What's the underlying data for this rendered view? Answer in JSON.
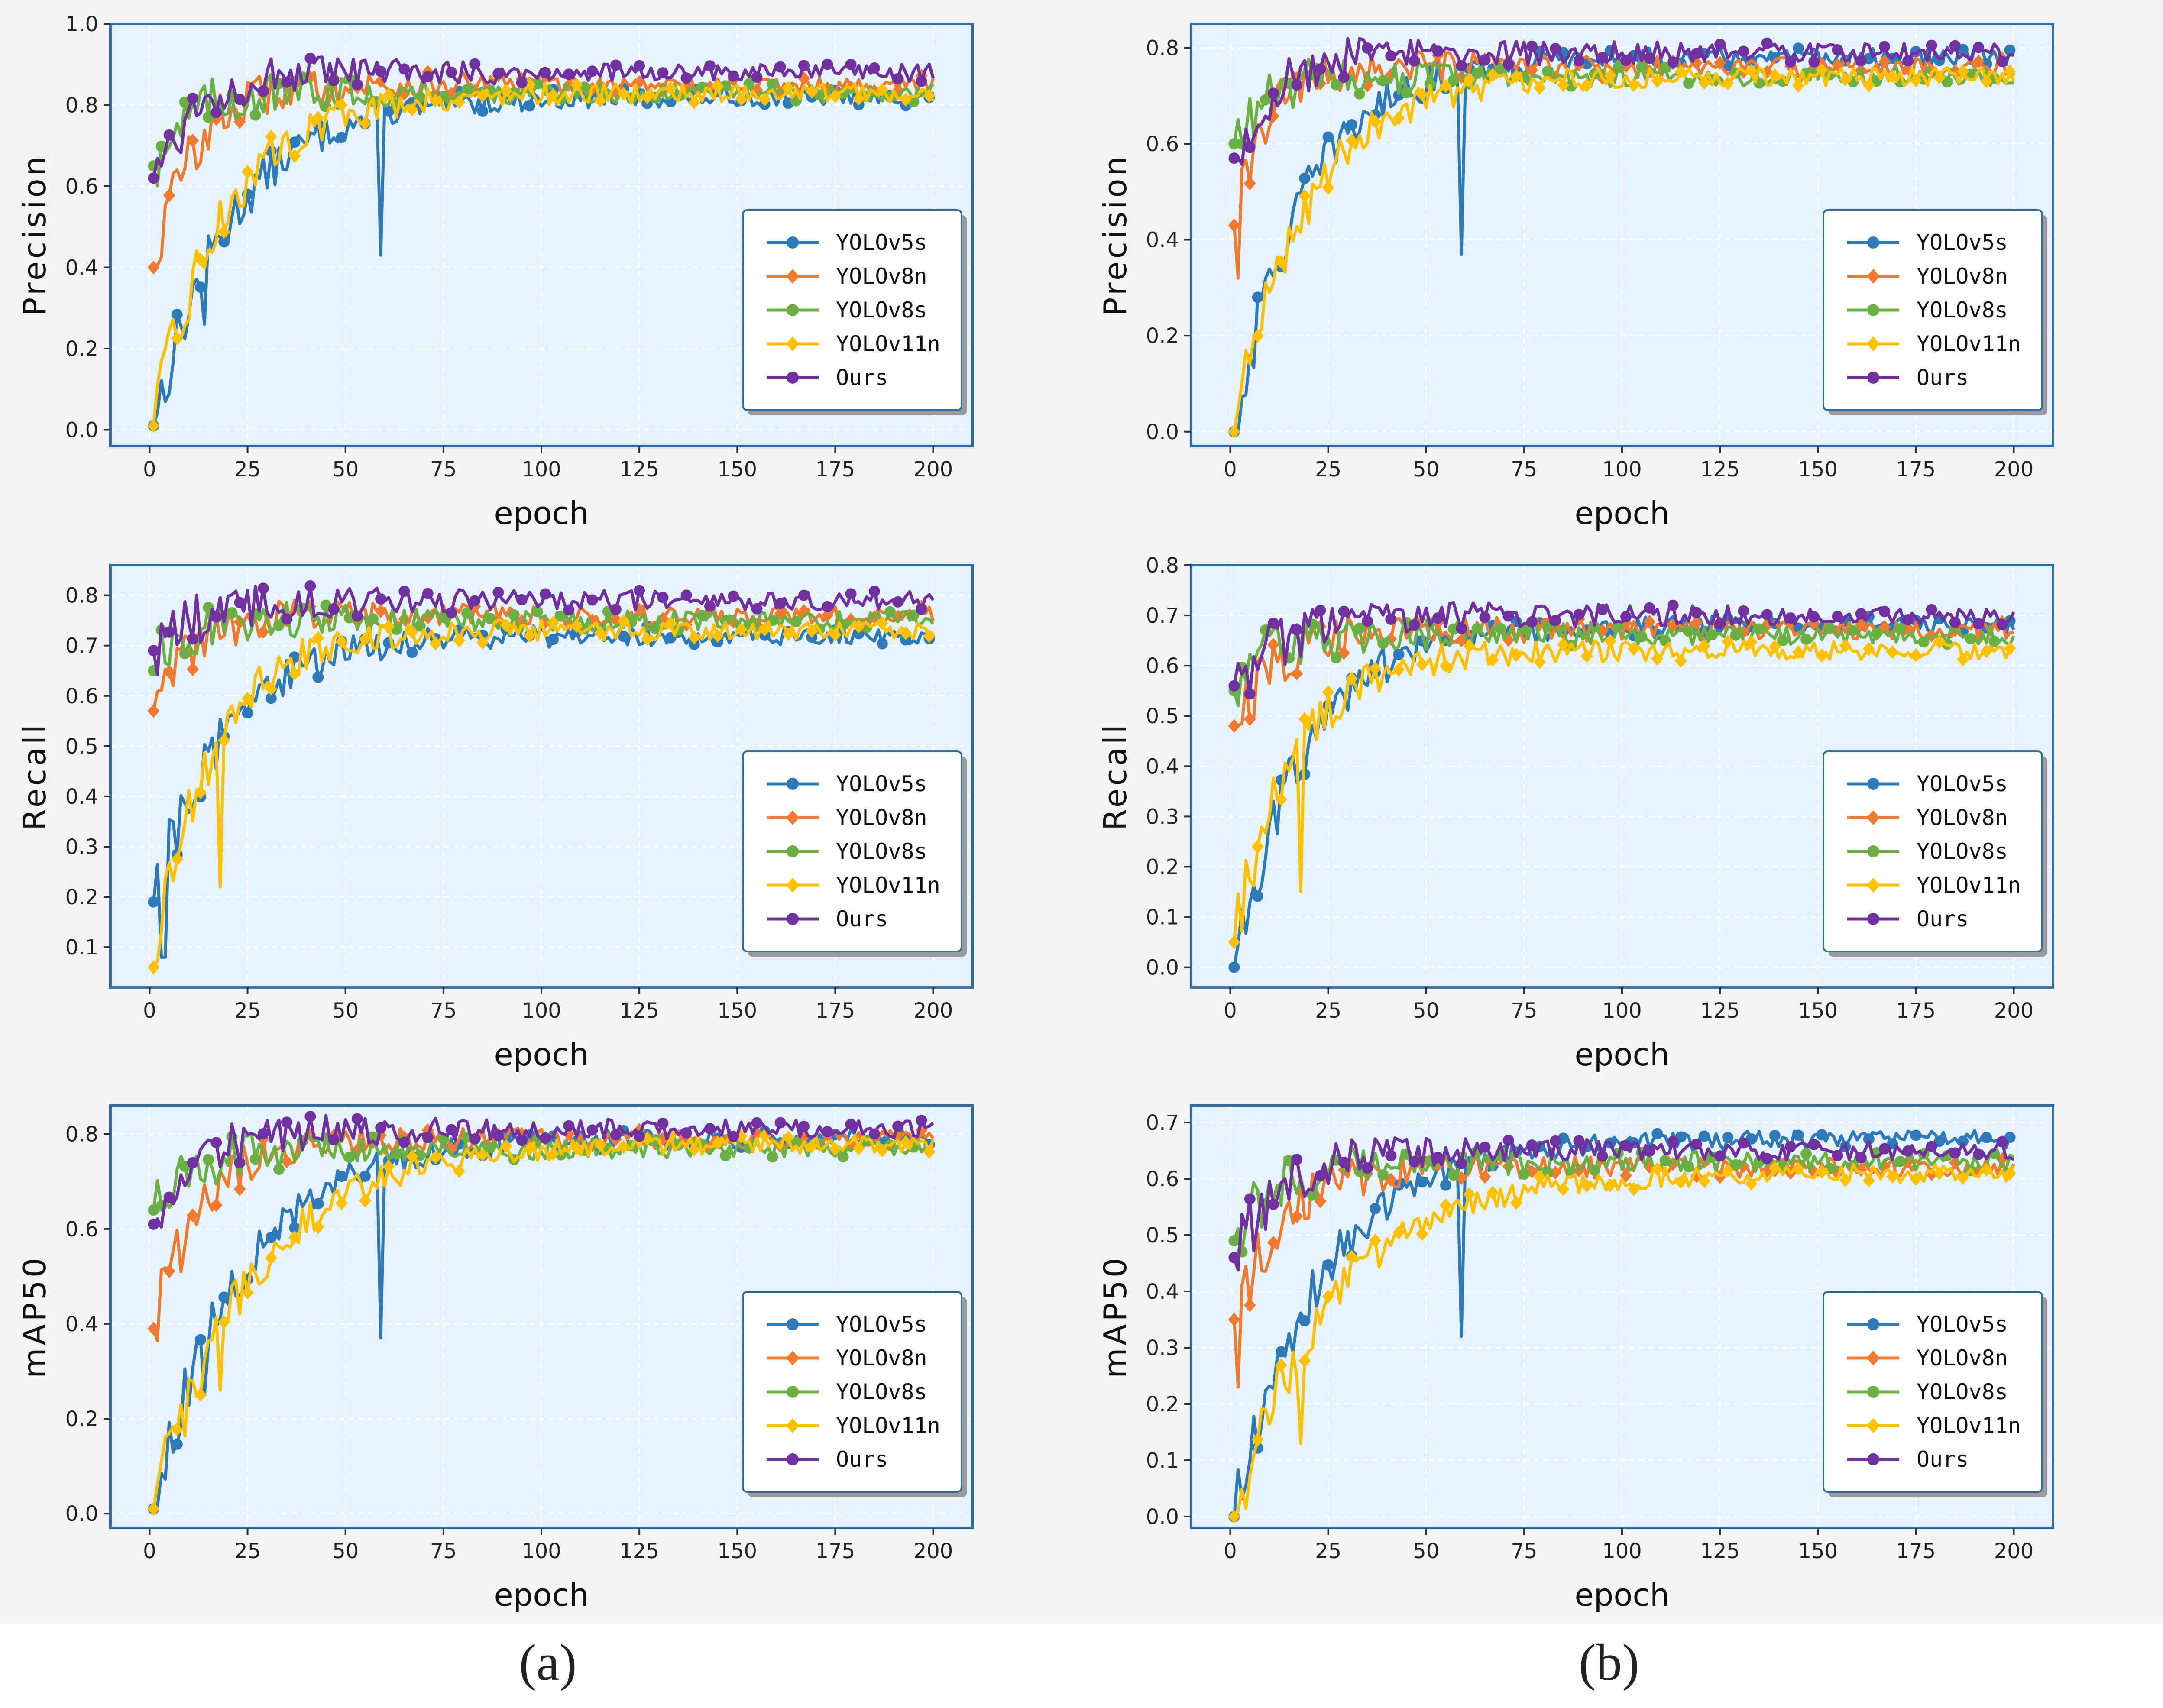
{
  "figure": {
    "caption_a": "(a)",
    "caption_b": "(b)"
  },
  "colors": {
    "YOLOv5s": "#2e7ab9",
    "YOLOv8n": "#ee7b30",
    "YOLOv8s": "#6cb043",
    "YOLOv11n": "#ffc000",
    "Ours": "#7030a0"
  },
  "chart_data": [
    {
      "id": "a-precision",
      "type": "line",
      "ylabel": "Precision",
      "xlabel": "epoch",
      "xlim": [
        -10,
        210
      ],
      "xticks": [
        0,
        25,
        50,
        75,
        100,
        125,
        150,
        175,
        200
      ],
      "ylim": [
        -0.04,
        1.0
      ],
      "yticks": [
        0.0,
        0.2,
        0.4,
        0.6,
        0.8,
        1.0
      ],
      "legend_position": "center-right",
      "series": [
        {
          "name": "YOLOv5s",
          "marker": "circle",
          "start": 0.01,
          "plateau": 0.82,
          "tau": 20,
          "dips": [
            [
              14,
              0.26
            ],
            [
              59,
              0.43
            ]
          ]
        },
        {
          "name": "YOLOv8n",
          "marker": "diamond",
          "start": 0.4,
          "plateau": 0.85,
          "tau": 10,
          "dips": []
        },
        {
          "name": "YOLOv8s",
          "marker": "circle",
          "start": 0.65,
          "plateau": 0.83,
          "tau": 8,
          "dips": []
        },
        {
          "name": "YOLOv11n",
          "marker": "diamond",
          "start": 0.01,
          "plateau": 0.83,
          "tau": 18,
          "dips": []
        },
        {
          "name": "Ours",
          "marker": "circle",
          "start": 0.62,
          "plateau": 0.88,
          "tau": 10,
          "dips": []
        }
      ]
    },
    {
      "id": "b-precision",
      "type": "line",
      "ylabel": "Precision",
      "xlabel": "epoch",
      "xlim": [
        -10,
        210
      ],
      "xticks": [
        0,
        25,
        50,
        75,
        100,
        125,
        150,
        175,
        200
      ],
      "ylim": [
        -0.03,
        0.85
      ],
      "yticks": [
        0.0,
        0.2,
        0.4,
        0.6,
        0.8
      ],
      "legend_position": "center-right",
      "series": [
        {
          "name": "YOLOv5s",
          "marker": "circle",
          "start": 0.0,
          "plateau": 0.78,
          "tau": 18,
          "dips": [
            [
              59,
              0.37
            ]
          ]
        },
        {
          "name": "YOLOv8n",
          "marker": "diamond",
          "start": 0.43,
          "plateau": 0.76,
          "tau": 8,
          "dips": [
            [
              2,
              0.32
            ]
          ]
        },
        {
          "name": "YOLOv8s",
          "marker": "circle",
          "start": 0.6,
          "plateau": 0.74,
          "tau": 8,
          "dips": []
        },
        {
          "name": "YOLOv11n",
          "marker": "diamond",
          "start": 0.0,
          "plateau": 0.74,
          "tau": 18,
          "dips": []
        },
        {
          "name": "Ours",
          "marker": "circle",
          "start": 0.57,
          "plateau": 0.79,
          "tau": 10,
          "dips": []
        }
      ]
    },
    {
      "id": "a-recall",
      "type": "line",
      "ylabel": "Recall",
      "xlabel": "epoch",
      "xlim": [
        -10,
        210
      ],
      "xticks": [
        0,
        25,
        50,
        75,
        100,
        125,
        150,
        175,
        200
      ],
      "ylim": [
        0.02,
        0.86
      ],
      "yticks": [
        0.1,
        0.2,
        0.3,
        0.4,
        0.5,
        0.6,
        0.7,
        0.8
      ],
      "legend_position": "center-right",
      "series": [
        {
          "name": "YOLOv5s",
          "marker": "circle",
          "start": 0.19,
          "plateau": 0.72,
          "tau": 18,
          "dips": [
            [
              3,
              0.08
            ],
            [
              4,
              0.08
            ]
          ]
        },
        {
          "name": "YOLOv8n",
          "marker": "diamond",
          "start": 0.57,
          "plateau": 0.76,
          "tau": 10,
          "dips": []
        },
        {
          "name": "YOLOv8s",
          "marker": "circle",
          "start": 0.65,
          "plateau": 0.75,
          "tau": 8,
          "dips": []
        },
        {
          "name": "YOLOv11n",
          "marker": "diamond",
          "start": 0.06,
          "plateau": 0.73,
          "tau": 15,
          "dips": [
            [
              18,
              0.22
            ]
          ]
        },
        {
          "name": "Ours",
          "marker": "circle",
          "start": 0.69,
          "plateau": 0.79,
          "tau": 12,
          "dips": []
        }
      ]
    },
    {
      "id": "b-recall",
      "type": "line",
      "ylabel": "Recall",
      "xlabel": "epoch",
      "xlim": [
        -10,
        210
      ],
      "xticks": [
        0,
        25,
        50,
        75,
        100,
        125,
        150,
        175,
        200
      ],
      "ylim": [
        -0.04,
        0.8
      ],
      "yticks": [
        0.0,
        0.1,
        0.2,
        0.3,
        0.4,
        0.5,
        0.6,
        0.7,
        0.8
      ],
      "legend_position": "center-right",
      "series": [
        {
          "name": "YOLOv5s",
          "marker": "circle",
          "start": 0.0,
          "plateau": 0.68,
          "tau": 18,
          "dips": []
        },
        {
          "name": "YOLOv8n",
          "marker": "diamond",
          "start": 0.48,
          "plateau": 0.67,
          "tau": 10,
          "dips": []
        },
        {
          "name": "YOLOv8s",
          "marker": "circle",
          "start": 0.55,
          "plateau": 0.66,
          "tau": 8,
          "dips": []
        },
        {
          "name": "YOLOv11n",
          "marker": "diamond",
          "start": 0.05,
          "plateau": 0.63,
          "tau": 15,
          "dips": [
            [
              18,
              0.15
            ]
          ]
        },
        {
          "name": "Ours",
          "marker": "circle",
          "start": 0.56,
          "plateau": 0.7,
          "tau": 12,
          "dips": []
        }
      ]
    },
    {
      "id": "a-map50",
      "type": "line",
      "ylabel": "mAP50",
      "xlabel": "epoch",
      "xlim": [
        -10,
        210
      ],
      "xticks": [
        0,
        25,
        50,
        75,
        100,
        125,
        150,
        175,
        200
      ],
      "ylim": [
        -0.03,
        0.86
      ],
      "yticks": [
        0.0,
        0.2,
        0.4,
        0.6,
        0.8
      ],
      "legend_position": "center-right",
      "series": [
        {
          "name": "YOLOv5s",
          "marker": "circle",
          "start": 0.01,
          "plateau": 0.79,
          "tau": 22,
          "dips": [
            [
              14,
              0.25
            ],
            [
              59,
              0.37
            ]
          ]
        },
        {
          "name": "YOLOv8n",
          "marker": "diamond",
          "start": 0.39,
          "plateau": 0.79,
          "tau": 12,
          "dips": []
        },
        {
          "name": "YOLOv8s",
          "marker": "circle",
          "start": 0.64,
          "plateau": 0.77,
          "tau": 10,
          "dips": []
        },
        {
          "name": "YOLOv11n",
          "marker": "diamond",
          "start": 0.01,
          "plateau": 0.78,
          "tau": 25,
          "dips": [
            [
              18,
              0.26
            ]
          ]
        },
        {
          "name": "Ours",
          "marker": "circle",
          "start": 0.61,
          "plateau": 0.81,
          "tau": 12,
          "dips": []
        }
      ]
    },
    {
      "id": "b-map50",
      "type": "line",
      "ylabel": "mAP50",
      "xlabel": "epoch",
      "xlim": [
        -10,
        210
      ],
      "xticks": [
        0,
        25,
        50,
        75,
        100,
        125,
        150,
        175,
        200
      ],
      "ylim": [
        -0.02,
        0.73
      ],
      "yticks": [
        0.0,
        0.1,
        0.2,
        0.3,
        0.4,
        0.5,
        0.6,
        0.7
      ],
      "legend_position": "center-right",
      "series": [
        {
          "name": "YOLOv5s",
          "marker": "circle",
          "start": 0.0,
          "plateau": 0.67,
          "tau": 22,
          "dips": [
            [
              59,
              0.32
            ]
          ]
        },
        {
          "name": "YOLOv8n",
          "marker": "diamond",
          "start": 0.35,
          "plateau": 0.62,
          "tau": 12,
          "dips": [
            [
              2,
              0.23
            ]
          ]
        },
        {
          "name": "YOLOv8s",
          "marker": "circle",
          "start": 0.49,
          "plateau": 0.63,
          "tau": 10,
          "dips": []
        },
        {
          "name": "YOLOv11n",
          "marker": "diamond",
          "start": 0.0,
          "plateau": 0.61,
          "tau": 25,
          "dips": [
            [
              18,
              0.13
            ]
          ]
        },
        {
          "name": "Ours",
          "marker": "circle",
          "start": 0.46,
          "plateau": 0.65,
          "tau": 12,
          "dips": []
        }
      ]
    }
  ]
}
